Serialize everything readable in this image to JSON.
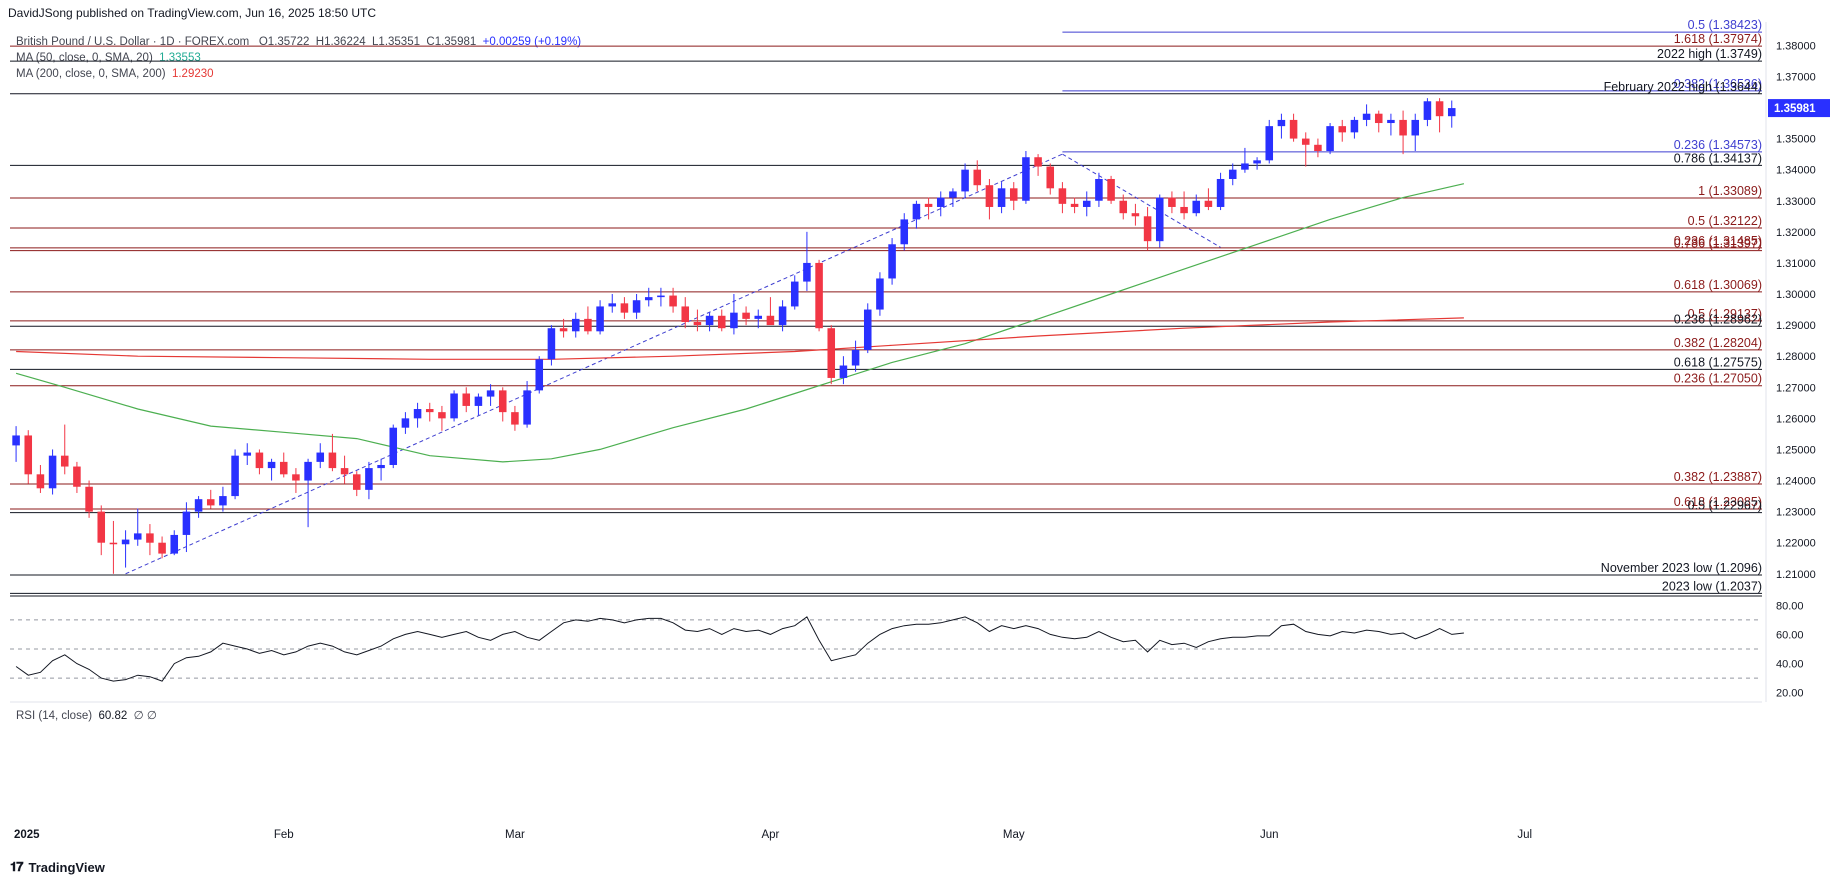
{
  "publisher": "DavidJSong published on TradingView.com, Jun 16, 2025 18:50 UTC",
  "brand": "TradingView",
  "legend": {
    "symbol": "British Pound / U.S. Dollar · 1D · FOREX.com",
    "open": "O1.35722",
    "high": "H1.36224",
    "low": "L1.35351",
    "close": "C1.35981",
    "change": "+0.00259 (+0.19%)",
    "ma50_label": "MA (50, close, 0, SMA, 20)",
    "ma50_value": "1.33553",
    "ma200_label": "MA (200, close, 0, SMA, 200)",
    "ma200_value": "1.29230",
    "rsi_label": "RSI (14, close)",
    "rsi_value": "60.82",
    "rsi_extra": "∅ ∅"
  },
  "colors": {
    "up": "#2930ff",
    "down": "#f23645",
    "ma50": "#4caf50",
    "ma200": "#e53935",
    "fib_red": "#8b1a1a",
    "fib_blue": "#3f3fd0",
    "level_black": "#131722",
    "price_badge": "#2930ff"
  },
  "chart_data": {
    "type": "candlestick",
    "price_axis": {
      "ylim": [
        1.2035,
        1.3875
      ],
      "ticks": [
        "1.38000",
        "1.37000",
        "1.36000",
        "1.35000",
        "1.34000",
        "1.33000",
        "1.32000",
        "1.31000",
        "1.30000",
        "1.29000",
        "1.28000",
        "1.27000",
        "1.26000",
        "1.25000",
        "1.24000",
        "1.23000",
        "1.22000",
        "1.21000"
      ],
      "current_price": "1.35981"
    },
    "x_axis": {
      "labels": [
        "2025",
        "Feb",
        "Mar",
        "Apr",
        "May",
        "Jun",
        "Jul"
      ],
      "label_bar_index": [
        0,
        22,
        41,
        62,
        82,
        103,
        124
      ],
      "total_slots": 144
    },
    "candles": [
      [
        1.2513,
        1.2575,
        1.246,
        1.2545
      ],
      [
        1.2545,
        1.2562,
        1.239,
        1.242
      ],
      [
        1.242,
        1.245,
        1.236,
        1.2375
      ],
      [
        1.2375,
        1.25,
        1.2355,
        1.248
      ],
      [
        1.248,
        1.258,
        1.242,
        1.2445
      ],
      [
        1.2445,
        1.246,
        1.236,
        1.238
      ],
      [
        1.238,
        1.24,
        1.228,
        1.23
      ],
      [
        1.23,
        1.232,
        1.216,
        1.22
      ],
      [
        1.22,
        1.227,
        1.21,
        1.2195
      ],
      [
        1.2195,
        1.224,
        1.212,
        1.221
      ],
      [
        1.221,
        1.231,
        1.219,
        1.223
      ],
      [
        1.223,
        1.226,
        1.216,
        1.22
      ],
      [
        1.22,
        1.222,
        1.215,
        1.2165
      ],
      [
        1.2165,
        1.224,
        1.216,
        1.2225
      ],
      [
        1.2225,
        1.233,
        1.217,
        1.23
      ],
      [
        1.23,
        1.235,
        1.228,
        1.234
      ],
      [
        1.234,
        1.237,
        1.231,
        1.232
      ],
      [
        1.232,
        1.238,
        1.23,
        1.235
      ],
      [
        1.235,
        1.25,
        1.234,
        1.248
      ],
      [
        1.248,
        1.252,
        1.245,
        1.249
      ],
      [
        1.249,
        1.25,
        1.242,
        1.244
      ],
      [
        1.244,
        1.247,
        1.24,
        1.246
      ],
      [
        1.246,
        1.249,
        1.241,
        1.242
      ],
      [
        1.242,
        1.244,
        1.236,
        1.24
      ],
      [
        1.24,
        1.247,
        1.225,
        1.246
      ],
      [
        1.246,
        1.252,
        1.244,
        1.249
      ],
      [
        1.249,
        1.255,
        1.243,
        1.244
      ],
      [
        1.244,
        1.248,
        1.239,
        1.242
      ],
      [
        1.242,
        1.243,
        1.235,
        1.237
      ],
      [
        1.237,
        1.246,
        1.234,
        1.244
      ],
      [
        1.244,
        1.247,
        1.24,
        1.245
      ],
      [
        1.245,
        1.258,
        1.244,
        1.257
      ],
      [
        1.257,
        1.262,
        1.255,
        1.26
      ],
      [
        1.26,
        1.265,
        1.257,
        1.263
      ],
      [
        1.263,
        1.265,
        1.259,
        1.262
      ],
      [
        1.262,
        1.264,
        1.256,
        1.26
      ],
      [
        1.26,
        1.269,
        1.259,
        1.268
      ],
      [
        1.268,
        1.27,
        1.262,
        1.264
      ],
      [
        1.264,
        1.268,
        1.261,
        1.267
      ],
      [
        1.267,
        1.271,
        1.264,
        1.269
      ],
      [
        1.269,
        1.27,
        1.259,
        1.262
      ],
      [
        1.262,
        1.264,
        1.256,
        1.258
      ],
      [
        1.258,
        1.272,
        1.257,
        1.269
      ],
      [
        1.269,
        1.28,
        1.268,
        1.279
      ],
      [
        1.279,
        1.29,
        1.277,
        1.289
      ],
      [
        1.289,
        1.292,
        1.286,
        1.288
      ],
      [
        1.288,
        1.294,
        1.286,
        1.292
      ],
      [
        1.292,
        1.296,
        1.287,
        1.288
      ],
      [
        1.288,
        1.298,
        1.287,
        1.296
      ],
      [
        1.296,
        1.3,
        1.294,
        1.297
      ],
      [
        1.297,
        1.299,
        1.292,
        1.294
      ],
      [
        1.294,
        1.3,
        1.292,
        1.298
      ],
      [
        1.298,
        1.302,
        1.296,
        1.299
      ],
      [
        1.299,
        1.302,
        1.296,
        1.2995
      ],
      [
        1.2995,
        1.302,
        1.294,
        1.296
      ],
      [
        1.296,
        1.299,
        1.289,
        1.291
      ],
      [
        1.291,
        1.295,
        1.288,
        1.29
      ],
      [
        1.29,
        1.294,
        1.288,
        1.293
      ],
      [
        1.293,
        1.295,
        1.288,
        1.289
      ],
      [
        1.289,
        1.3,
        1.287,
        1.294
      ],
      [
        1.294,
        1.296,
        1.29,
        1.292
      ],
      [
        1.292,
        1.295,
        1.289,
        1.293
      ],
      [
        1.293,
        1.299,
        1.291,
        1.29
      ],
      [
        1.29,
        1.298,
        1.288,
        1.296
      ],
      [
        1.296,
        1.306,
        1.295,
        1.304
      ],
      [
        1.304,
        1.32,
        1.301,
        1.31
      ],
      [
        1.31,
        1.311,
        1.288,
        1.289
      ],
      [
        1.289,
        1.29,
        1.271,
        1.273
      ],
      [
        1.273,
        1.28,
        1.271,
        1.277
      ],
      [
        1.277,
        1.285,
        1.275,
        1.282
      ],
      [
        1.282,
        1.297,
        1.281,
        1.295
      ],
      [
        1.295,
        1.307,
        1.293,
        1.305
      ],
      [
        1.305,
        1.318,
        1.303,
        1.316
      ],
      [
        1.316,
        1.326,
        1.314,
        1.324
      ],
      [
        1.324,
        1.33,
        1.321,
        1.329
      ],
      [
        1.329,
        1.331,
        1.324,
        1.328
      ],
      [
        1.328,
        1.333,
        1.325,
        1.331
      ],
      [
        1.331,
        1.334,
        1.328,
        1.333
      ],
      [
        1.333,
        1.342,
        1.331,
        1.34
      ],
      [
        1.34,
        1.343,
        1.333,
        1.335
      ],
      [
        1.335,
        1.337,
        1.324,
        1.328
      ],
      [
        1.328,
        1.336,
        1.326,
        1.334
      ],
      [
        1.334,
        1.336,
        1.327,
        1.33
      ],
      [
        1.33,
        1.346,
        1.329,
        1.344
      ],
      [
        1.344,
        1.345,
        1.338,
        1.341
      ],
      [
        1.341,
        1.342,
        1.332,
        1.334
      ],
      [
        1.334,
        1.336,
        1.326,
        1.329
      ],
      [
        1.329,
        1.331,
        1.326,
        1.328
      ],
      [
        1.328,
        1.333,
        1.325,
        1.33
      ],
      [
        1.33,
        1.339,
        1.328,
        1.337
      ],
      [
        1.337,
        1.338,
        1.329,
        1.33
      ],
      [
        1.33,
        1.332,
        1.324,
        1.326
      ],
      [
        1.326,
        1.329,
        1.322,
        1.325
      ],
      [
        1.325,
        1.328,
        1.314,
        1.317
      ],
      [
        1.317,
        1.332,
        1.315,
        1.331
      ],
      [
        1.331,
        1.333,
        1.326,
        1.328
      ],
      [
        1.328,
        1.333,
        1.324,
        1.326
      ],
      [
        1.326,
        1.332,
        1.325,
        1.33
      ],
      [
        1.33,
        1.334,
        1.327,
        1.328
      ],
      [
        1.328,
        1.339,
        1.327,
        1.337
      ],
      [
        1.337,
        1.342,
        1.335,
        1.34
      ],
      [
        1.34,
        1.347,
        1.339,
        1.342
      ],
      [
        1.342,
        1.344,
        1.34,
        1.343
      ],
      [
        1.343,
        1.356,
        1.342,
        1.354
      ],
      [
        1.354,
        1.358,
        1.35,
        1.356
      ],
      [
        1.356,
        1.358,
        1.349,
        1.35
      ],
      [
        1.35,
        1.352,
        1.341,
        1.348
      ],
      [
        1.348,
        1.35,
        1.344,
        1.346
      ],
      [
        1.346,
        1.355,
        1.345,
        1.354
      ],
      [
        1.354,
        1.356,
        1.349,
        1.352
      ],
      [
        1.352,
        1.357,
        1.35,
        1.356
      ],
      [
        1.356,
        1.361,
        1.354,
        1.358
      ],
      [
        1.358,
        1.359,
        1.352,
        1.355
      ],
      [
        1.355,
        1.358,
        1.351,
        1.356
      ],
      [
        1.356,
        1.359,
        1.345,
        1.351
      ],
      [
        1.351,
        1.358,
        1.346,
        1.356
      ],
      [
        1.356,
        1.363,
        1.354,
        1.362
      ],
      [
        1.362,
        1.363,
        1.352,
        1.3572
      ],
      [
        1.3572,
        1.36224,
        1.35351,
        1.35981
      ]
    ],
    "ma50": [
      [
        0,
        1.2745
      ],
      [
        4,
        1.27
      ],
      [
        10,
        1.263
      ],
      [
        16,
        1.2575
      ],
      [
        22,
        1.2555
      ],
      [
        28,
        1.2535
      ],
      [
        34,
        1.248
      ],
      [
        40,
        1.246
      ],
      [
        44,
        1.247
      ],
      [
        48,
        1.25
      ],
      [
        54,
        1.257
      ],
      [
        60,
        1.263
      ],
      [
        64,
        1.268
      ],
      [
        68,
        1.273
      ],
      [
        72,
        1.278
      ],
      [
        78,
        1.284
      ],
      [
        84,
        1.292
      ],
      [
        90,
        1.3
      ],
      [
        96,
        1.308
      ],
      [
        102,
        1.316
      ],
      [
        108,
        1.324
      ],
      [
        114,
        1.331
      ],
      [
        119,
        1.3355
      ]
    ],
    "ma200": [
      [
        0,
        1.2815
      ],
      [
        10,
        1.28
      ],
      [
        22,
        1.2795
      ],
      [
        34,
        1.279
      ],
      [
        44,
        1.279
      ],
      [
        54,
        1.28
      ],
      [
        64,
        1.2815
      ],
      [
        72,
        1.2835
      ],
      [
        84,
        1.2865
      ],
      [
        96,
        1.289
      ],
      [
        108,
        1.291
      ],
      [
        119,
        1.2923
      ]
    ],
    "levels": [
      {
        "label": "0.5 (1.38423)",
        "price": 1.38423,
        "color": "fib_blue",
        "start": 86
      },
      {
        "label": "1.618 (1.37974)",
        "price": 1.37974,
        "color": "fib_red",
        "start": 0
      },
      {
        "label": "2022 high (1.3749)",
        "price": 1.3749,
        "color": "level_black",
        "start": 0
      },
      {
        "label": "0.382 (1.36536)",
        "price": 1.36536,
        "color": "fib_blue",
        "start": 86
      },
      {
        "label": "February 2022 high (1.3644)",
        "price": 1.3644,
        "color": "level_black",
        "start": 0
      },
      {
        "label": "0.236 (1.34573)",
        "price": 1.34573,
        "color": "fib_blue",
        "start": 86
      },
      {
        "label": "0.786 (1.34137)",
        "price": 1.34137,
        "color": "level_black",
        "start": 0
      },
      {
        "label": "1 (1.33089)",
        "price": 1.33089,
        "color": "fib_red",
        "start": 0
      },
      {
        "label": "0.5 (1.32122)",
        "price": 1.32122,
        "color": "fib_red",
        "start": 0
      },
      {
        "label": "0.236 (1.31485)",
        "price": 1.31485,
        "color": "fib_red",
        "start": 0
      },
      {
        "label": "0.786 (1.31397)",
        "price": 1.31397,
        "color": "fib_red",
        "start": 0
      },
      {
        "label": "0.618 (1.30069)",
        "price": 1.30069,
        "color": "fib_red",
        "start": 0
      },
      {
        "label": "0.5 (1.29137)",
        "price": 1.29137,
        "color": "fib_red",
        "start": 0
      },
      {
        "label": "0.236 (1.28962)",
        "price": 1.28962,
        "color": "level_black",
        "start": 0
      },
      {
        "label": "0.382 (1.28204)",
        "price": 1.28204,
        "color": "fib_red",
        "start": 0
      },
      {
        "label": "0.618 (1.27575)",
        "price": 1.27575,
        "color": "level_black",
        "start": 0
      },
      {
        "label": "0.236 (1.27050)",
        "price": 1.2705,
        "color": "fib_red",
        "start": 0
      },
      {
        "label": "0.382 (1.23887)",
        "price": 1.23887,
        "color": "fib_red",
        "start": 0
      },
      {
        "label": "0.618 (1.23085)",
        "price": 1.23085,
        "color": "fib_red",
        "start": 0
      },
      {
        "label": "0.5 (1.22967)",
        "price": 1.22967,
        "color": "level_black",
        "start": 0
      },
      {
        "label": "November 2023 low (1.2096)",
        "price": 1.2096,
        "color": "level_black",
        "start": 0
      },
      {
        "label": "2023 low (1.2037)",
        "price": 1.2037,
        "color": "level_black",
        "start": 0
      }
    ],
    "trend_lines": [
      {
        "from": [
          9,
          1.21
        ],
        "to": [
          86,
          1.345
        ]
      },
      {
        "from": [
          86,
          1.345
        ],
        "to": [
          99,
          1.315
        ]
      }
    ],
    "rsi": {
      "ylim": [
        15,
        85
      ],
      "ticks": [
        "80.00",
        "60.00",
        "40.00",
        "20.00"
      ],
      "bands": [
        70,
        50,
        30
      ],
      "values": [
        38,
        32,
        34,
        42,
        46,
        40,
        36,
        30,
        28,
        29,
        32,
        31,
        28,
        40,
        44,
        45,
        48,
        54,
        52,
        50,
        47,
        49,
        46,
        48,
        52,
        54,
        52,
        48,
        46,
        49,
        52,
        57,
        60,
        62,
        60,
        58,
        60,
        62,
        58,
        56,
        60,
        62,
        58,
        56,
        62,
        68,
        70,
        69,
        71,
        70,
        68,
        70,
        71,
        71,
        68,
        63,
        62,
        64,
        60,
        64,
        62,
        63,
        60,
        64,
        66,
        72,
        56,
        42,
        44,
        46,
        54,
        60,
        64,
        66,
        67,
        67,
        68,
        70,
        72,
        68,
        62,
        66,
        64,
        66,
        64,
        60,
        58,
        57,
        58,
        62,
        58,
        55,
        56,
        48,
        56,
        53,
        54,
        51,
        55,
        57,
        58,
        58,
        59,
        59,
        66,
        67,
        62,
        60,
        59,
        62,
        61,
        63,
        62,
        60,
        61,
        57,
        60,
        64,
        60,
        61
      ]
    }
  }
}
